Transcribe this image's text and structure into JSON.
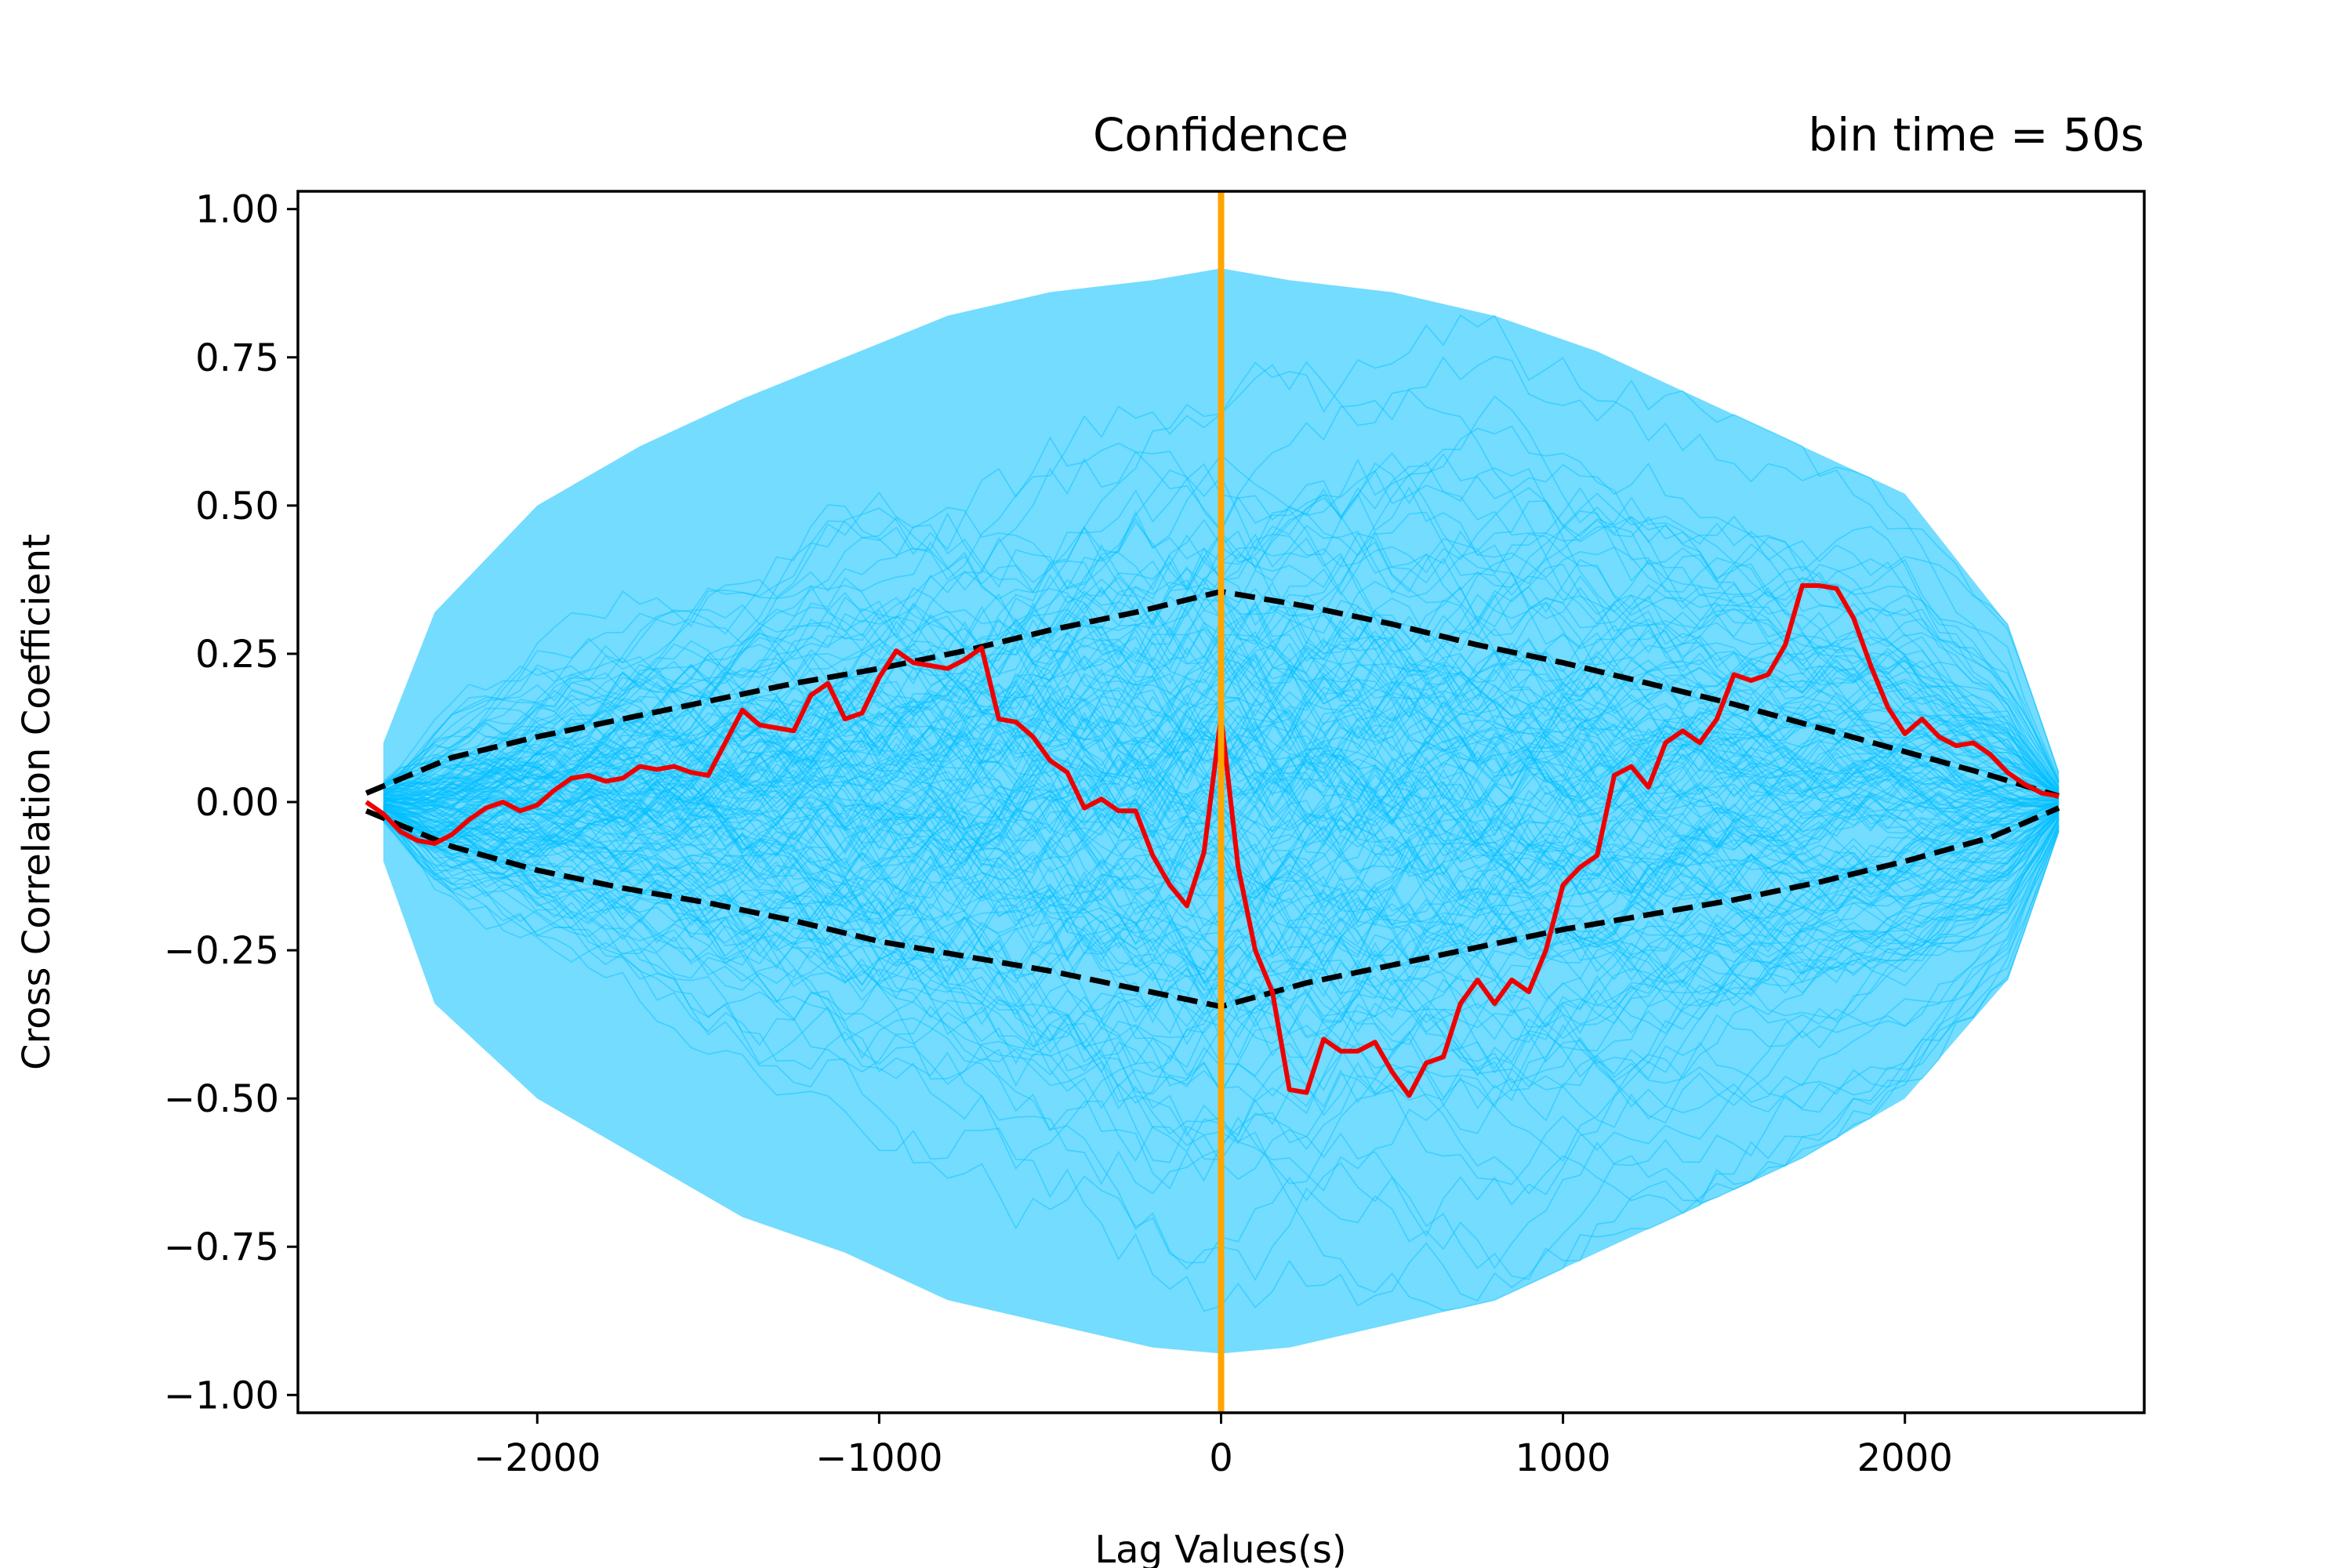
{
  "chart_data": {
    "type": "line",
    "title_center": "Confidence",
    "title_right": "bin time = 50s",
    "xlabel": "Lag Values(s)",
    "ylabel": "Cross Correlation Coefficient",
    "xlim": [
      -2700,
      2700
    ],
    "ylim": [
      -1.03,
      1.03
    ],
    "xticks": [
      -2000,
      -1000,
      0,
      1000,
      2000
    ],
    "xtick_labels": [
      "−2000",
      "−1000",
      "0",
      "1000",
      "2000"
    ],
    "yticks": [
      1.0,
      0.75,
      0.5,
      0.25,
      0.0,
      -0.25,
      -0.5,
      -0.75,
      -1.0
    ],
    "ytick_labels": [
      "1.00",
      "0.75",
      "0.50",
      "0.25",
      "0.00",
      "−0.25",
      "−0.50",
      "−0.75",
      "−1.00"
    ],
    "grid": false,
    "colors": {
      "simulations": "#00BFFF",
      "observed": "#EE0000",
      "confidence": "#000000",
      "zero_lag": "#FFA500"
    },
    "zero_lag_line_x": 0,
    "simulation_envelope": {
      "x": [
        -2450,
        -2300,
        -2000,
        -1700,
        -1400,
        -1100,
        -800,
        -500,
        -200,
        0,
        200,
        500,
        800,
        1100,
        1400,
        1700,
        2000,
        2300,
        2450
      ],
      "upper": [
        0.1,
        0.32,
        0.5,
        0.6,
        0.68,
        0.75,
        0.82,
        0.86,
        0.88,
        0.9,
        0.88,
        0.86,
        0.82,
        0.76,
        0.68,
        0.6,
        0.52,
        0.3,
        0.05
      ],
      "lower": [
        -0.1,
        -0.34,
        -0.5,
        -0.6,
        -0.7,
        -0.76,
        -0.84,
        -0.88,
        -0.92,
        -0.93,
        -0.92,
        -0.88,
        -0.84,
        -0.76,
        -0.68,
        -0.6,
        -0.5,
        -0.3,
        -0.05
      ]
    },
    "series": [
      {
        "role": "observed",
        "x": [
          -2500,
          -2450,
          -2400,
          -2350,
          -2300,
          -2250,
          -2200,
          -2150,
          -2100,
          -2050,
          -2000,
          -1950,
          -1900,
          -1850,
          -1800,
          -1750,
          -1700,
          -1650,
          -1600,
          -1550,
          -1500,
          -1450,
          -1400,
          -1350,
          -1300,
          -1250,
          -1200,
          -1150,
          -1100,
          -1050,
          -1000,
          -950,
          -900,
          -850,
          -800,
          -750,
          -700,
          -650,
          -600,
          -550,
          -500,
          -450,
          -400,
          -350,
          -300,
          -250,
          -200,
          -150,
          -100,
          -50,
          0,
          50,
          100,
          150,
          200,
          250,
          300,
          350,
          400,
          450,
          500,
          550,
          600,
          650,
          700,
          750,
          800,
          850,
          900,
          950,
          1000,
          1050,
          1100,
          1150,
          1200,
          1250,
          1300,
          1350,
          1400,
          1450,
          1500,
          1550,
          1600,
          1650,
          1700,
          1750,
          1800,
          1850,
          1900,
          1950,
          2000,
          2050,
          2100,
          2150,
          2200,
          2250,
          2300,
          2350,
          2400,
          2450
        ],
        "y": [
          0.0,
          -0.02,
          -0.05,
          -0.065,
          -0.07,
          -0.055,
          -0.03,
          -0.01,
          0.0,
          -0.015,
          -0.005,
          0.02,
          0.04,
          0.045,
          0.035,
          0.04,
          0.06,
          0.055,
          0.06,
          0.05,
          0.045,
          0.1,
          0.155,
          0.13,
          0.125,
          0.12,
          0.18,
          0.2,
          0.14,
          0.15,
          0.21,
          0.255,
          0.235,
          0.23,
          0.225,
          0.24,
          0.26,
          0.14,
          0.135,
          0.11,
          0.07,
          0.05,
          -0.01,
          0.005,
          -0.015,
          -0.015,
          -0.09,
          -0.14,
          -0.175,
          -0.085,
          0.145,
          -0.11,
          -0.25,
          -0.32,
          -0.485,
          -0.49,
          -0.4,
          -0.42,
          -0.42,
          -0.405,
          -0.455,
          -0.495,
          -0.44,
          -0.43,
          -0.34,
          -0.3,
          -0.34,
          -0.3,
          -0.32,
          -0.25,
          -0.14,
          -0.11,
          -0.09,
          0.045,
          0.06,
          0.025,
          0.1,
          0.12,
          0.1,
          0.14,
          0.215,
          0.205,
          0.215,
          0.265,
          0.365,
          0.365,
          0.36,
          0.31,
          0.23,
          0.16,
          0.115,
          0.14,
          0.11,
          0.095,
          0.1,
          0.08,
          0.05,
          0.03,
          0.015,
          0.01
        ]
      },
      {
        "role": "confidence_upper",
        "x": [
          -2500,
          -2250,
          -2000,
          -1750,
          -1500,
          -1250,
          -1000,
          -750,
          -500,
          -250,
          0,
          250,
          500,
          750,
          1000,
          1250,
          1500,
          1750,
          2000,
          2250,
          2450
        ],
        "y": [
          0.015,
          0.075,
          0.11,
          0.14,
          0.17,
          0.2,
          0.225,
          0.255,
          0.29,
          0.32,
          0.355,
          0.33,
          0.3,
          0.265,
          0.235,
          0.2,
          0.165,
          0.125,
          0.085,
          0.045,
          0.01
        ]
      },
      {
        "role": "confidence_lower",
        "x": [
          -2500,
          -2250,
          -2000,
          -1750,
          -1500,
          -1250,
          -1000,
          -750,
          -500,
          -250,
          0,
          250,
          500,
          750,
          1000,
          1250,
          1500,
          1750,
          2000,
          2250,
          2450
        ],
        "y": [
          -0.015,
          -0.075,
          -0.115,
          -0.145,
          -0.17,
          -0.2,
          -0.235,
          -0.26,
          -0.285,
          -0.315,
          -0.345,
          -0.305,
          -0.275,
          -0.245,
          -0.215,
          -0.19,
          -0.165,
          -0.135,
          -0.1,
          -0.06,
          -0.01
        ]
      }
    ]
  }
}
